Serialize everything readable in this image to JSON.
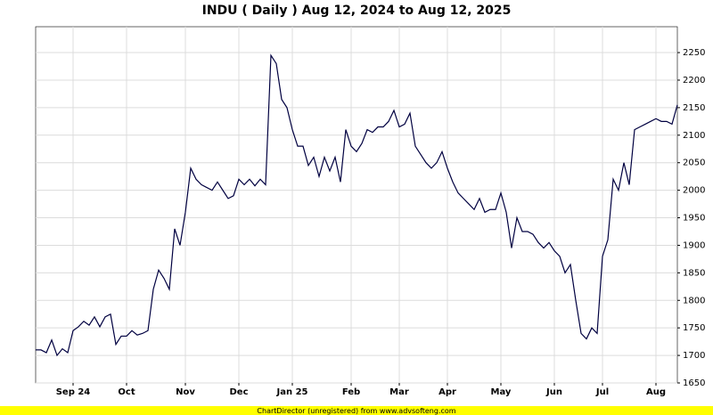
{
  "chart_data": {
    "type": "line",
    "title": "INDU ( Daily ) Aug 12, 2024 to Aug 12, 2025",
    "footer": "ChartDirector (unregistered) from www.advsofteng.com",
    "categories": [
      null,
      null,
      null,
      null,
      null,
      null,
      null,
      "Sep 24",
      null,
      null,
      null,
      null,
      null,
      null,
      null,
      null,
      null,
      "Oct",
      null,
      null,
      null,
      null,
      null,
      null,
      null,
      null,
      null,
      null,
      "Nov",
      null,
      null,
      null,
      null,
      null,
      null,
      null,
      null,
      null,
      "Dec",
      null,
      null,
      null,
      null,
      null,
      null,
      null,
      null,
      null,
      "Jan 25",
      null,
      null,
      null,
      null,
      null,
      null,
      null,
      null,
      null,
      null,
      "Feb",
      null,
      null,
      null,
      null,
      null,
      null,
      null,
      null,
      "Mar",
      null,
      null,
      null,
      null,
      null,
      null,
      null,
      null,
      "Apr",
      null,
      null,
      null,
      null,
      null,
      null,
      null,
      null,
      null,
      "May",
      null,
      null,
      null,
      null,
      null,
      null,
      null,
      null,
      null,
      "Jun",
      null,
      null,
      null,
      null,
      null,
      null,
      null,
      null,
      "Jul",
      null,
      null,
      null,
      null,
      null,
      null,
      null,
      null,
      null,
      "Aug",
      null,
      null,
      null,
      null
    ],
    "series": [
      {
        "name": "INDU",
        "color": "#000040",
        "values": [
          1710,
          1710,
          1705,
          1728,
          1700,
          1712,
          1705,
          1745,
          1752,
          1762,
          1755,
          1770,
          1752,
          1770,
          1775,
          1720,
          1735,
          1735,
          1745,
          1737,
          1740,
          1745,
          1820,
          1855,
          1840,
          1820,
          1930,
          1900,
          1960,
          2040,
          2020,
          2010,
          2005,
          2000,
          2015,
          2000,
          1985,
          1990,
          2020,
          2010,
          2020,
          2008,
          2020,
          2010,
          2245,
          2230,
          2165,
          2150,
          2110,
          2080,
          2080,
          2045,
          2060,
          2025,
          2060,
          2035,
          2060,
          2015,
          2110,
          2080,
          2070,
          2085,
          2110,
          2105,
          2115,
          2115,
          2125,
          2145,
          2115,
          2120,
          2140,
          2080,
          2065,
          2050,
          2040,
          2050,
          2070,
          2040,
          2015,
          1995,
          1985,
          1975,
          1965,
          1985,
          1960,
          1965,
          1965,
          1995,
          1960,
          1895,
          1950,
          1925,
          1925,
          1920,
          1905,
          1895,
          1905,
          1890,
          1880,
          1850,
          1865,
          1800,
          1740,
          1730,
          1750,
          1740,
          1880,
          1910,
          2020,
          2000,
          2050,
          2010,
          2110,
          2115,
          2120,
          2125,
          2130,
          2125,
          2125,
          2120,
          2155
        ]
      }
    ],
    "ylim": [
      1650,
      2297
    ],
    "yticks": [
      1650,
      1700,
      1750,
      1800,
      1850,
      1900,
      1950,
      2000,
      2050,
      2100,
      2150,
      2200,
      2250
    ],
    "grid": true
  }
}
